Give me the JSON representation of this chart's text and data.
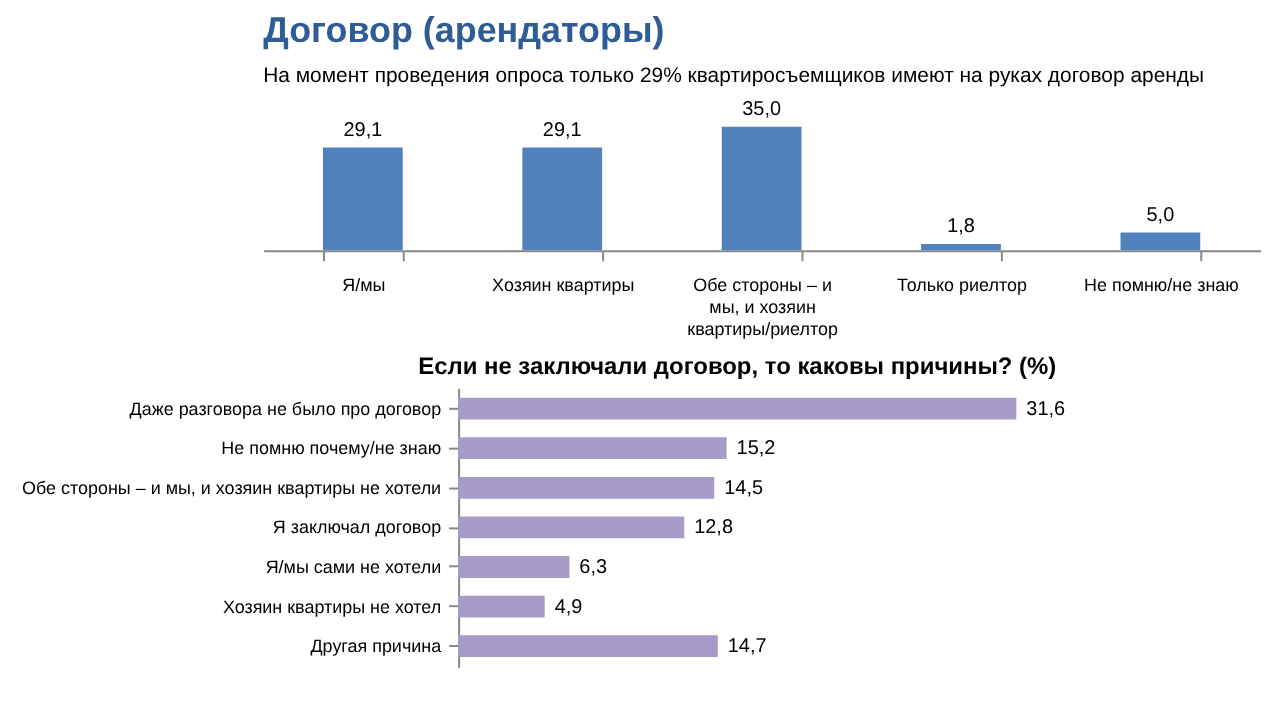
{
  "chart_data": [
    {
      "type": "bar",
      "title": "Договор (арендаторы)",
      "subtitle": "На момент проведения опроса только 29% квартиросъемщиков имеют на руках договор аренды",
      "categories": [
        "Я/мы",
        "Хозяин квартиры",
        "Обе стороны – и мы, и хозяин квартиры/риелтор",
        "Только риелтор",
        "Не помню/не знаю"
      ],
      "values": [
        29.1,
        29.1,
        35.0,
        1.8,
        5.0
      ],
      "value_labels": [
        "29,1",
        "29,1",
        "35,0",
        "1,8",
        "5,0"
      ],
      "color": "#4f81bd"
    },
    {
      "type": "bar",
      "orientation": "horizontal",
      "title": "Если не заключали договор, то каковы причины? (%)",
      "categories": [
        "Даже разговора не было про договор",
        "Не помню почему/не знаю",
        "Обе стороны – и мы, и хозяин квартиры не хотели",
        "Я заключал договор",
        "Я/мы сами не хотели",
        "Хозяин квартиры не хотел",
        "Другая причина"
      ],
      "values": [
        31.6,
        15.2,
        14.5,
        12.8,
        6.3,
        4.9,
        14.7
      ],
      "value_labels": [
        "31,6",
        "15,2",
        "14,5",
        "12,8",
        "6,3",
        "4,9",
        "14,7"
      ],
      "color": "#a99bc8"
    }
  ]
}
